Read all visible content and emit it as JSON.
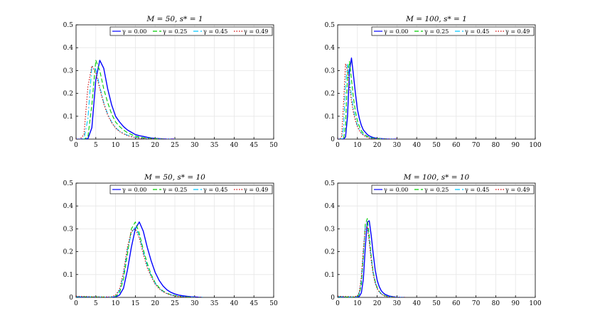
{
  "page": {},
  "colors": {
    "axis": "#000000",
    "grid": "#e6e6e6",
    "series": [
      "#0000ff",
      "#00cc00",
      "#00c8ff",
      "#cc0000"
    ]
  },
  "chart_data": [
    {
      "type": "line",
      "title": "M = 50, s* = 1",
      "xlim": [
        0,
        50
      ],
      "ylim": [
        0,
        0.5
      ],
      "xticks": [
        0,
        5,
        10,
        15,
        20,
        25,
        30,
        35,
        40,
        45,
        50
      ],
      "yticks": [
        0,
        0.1,
        0.2,
        0.3,
        0.4,
        0.5
      ],
      "grid": true,
      "legend": "top-right",
      "series": [
        {
          "name": "γ = 0.00",
          "style": "solid",
          "x": [
            0,
            1,
            2,
            3,
            4,
            5,
            6,
            7,
            8,
            9,
            10,
            11,
            12,
            13,
            14,
            15,
            16,
            17,
            18,
            19,
            20,
            21,
            22,
            23,
            24,
            25
          ],
          "y": [
            0,
            0,
            0,
            0.002,
            0.05,
            0.26,
            0.345,
            0.31,
            0.22,
            0.15,
            0.1,
            0.075,
            0.055,
            0.04,
            0.03,
            0.02,
            0.015,
            0.012,
            0.008,
            0.005,
            0.003,
            0.002,
            0.001,
            0,
            0,
            0
          ]
        },
        {
          "name": "γ = 0.25",
          "style": "dashed",
          "x": [
            0,
            1,
            2,
            3,
            4,
            5,
            6,
            7,
            8,
            9,
            10,
            11,
            12,
            13,
            14,
            15,
            16,
            17,
            18,
            19,
            20,
            21,
            22,
            23,
            24,
            25
          ],
          "y": [
            0,
            0,
            0,
            0.01,
            0.15,
            0.345,
            0.3,
            0.22,
            0.16,
            0.11,
            0.075,
            0.055,
            0.04,
            0.028,
            0.02,
            0.013,
            0.009,
            0.006,
            0.004,
            0.003,
            0.002,
            0.001,
            0,
            0,
            0,
            0
          ]
        },
        {
          "name": "γ = 0.45",
          "style": "dashdot",
          "x": [
            0,
            1,
            2,
            3,
            4,
            5,
            6,
            7,
            8,
            9,
            10,
            11,
            12,
            13,
            14,
            15,
            16,
            17,
            18,
            19,
            20,
            21,
            22,
            23,
            24,
            25
          ],
          "y": [
            0,
            0,
            0,
            0.09,
            0.32,
            0.305,
            0.23,
            0.16,
            0.11,
            0.075,
            0.05,
            0.035,
            0.025,
            0.017,
            0.012,
            0.008,
            0.005,
            0.003,
            0.002,
            0.001,
            0,
            0,
            0,
            0,
            0,
            0
          ]
        },
        {
          "name": "γ = 0.49",
          "style": "dotted",
          "x": [
            0,
            1,
            2,
            3,
            4,
            5,
            6,
            7,
            8,
            9,
            10,
            11,
            12,
            13,
            14,
            15,
            16,
            17,
            18,
            19,
            20,
            21,
            22,
            23,
            24,
            25
          ],
          "y": [
            0,
            0,
            0.02,
            0.23,
            0.32,
            0.29,
            0.22,
            0.155,
            0.105,
            0.072,
            0.048,
            0.033,
            0.023,
            0.015,
            0.01,
            0.007,
            0.004,
            0.003,
            0.002,
            0.001,
            0,
            0,
            0,
            0,
            0,
            0
          ]
        }
      ]
    },
    {
      "type": "line",
      "title": "M = 100, s* = 1",
      "xlim": [
        0,
        100
      ],
      "ylim": [
        0,
        0.5
      ],
      "xticks": [
        0,
        10,
        20,
        30,
        40,
        50,
        60,
        70,
        80,
        90,
        100
      ],
      "yticks": [
        0,
        0.1,
        0.2,
        0.3,
        0.4,
        0.5
      ],
      "grid": true,
      "legend": "top-right",
      "series": [
        {
          "name": "γ = 0.00",
          "style": "solid",
          "x": [
            0,
            1,
            2,
            3,
            4,
            5,
            6,
            7,
            8,
            9,
            10,
            11,
            12,
            13,
            14,
            15,
            16,
            17,
            18,
            19,
            20,
            22,
            24,
            26,
            28,
            30
          ],
          "y": [
            0,
            0,
            0,
            0,
            0.01,
            0.1,
            0.3,
            0.355,
            0.28,
            0.2,
            0.13,
            0.09,
            0.06,
            0.04,
            0.03,
            0.02,
            0.014,
            0.01,
            0.007,
            0.005,
            0.003,
            0.002,
            0.001,
            0,
            0,
            0
          ]
        },
        {
          "name": "γ = 0.25",
          "style": "dashed",
          "x": [
            0,
            1,
            2,
            3,
            4,
            5,
            6,
            7,
            8,
            9,
            10,
            11,
            12,
            13,
            14,
            15,
            16,
            17,
            18,
            19,
            20,
            22,
            24,
            26,
            28,
            30
          ],
          "y": [
            0,
            0,
            0,
            0.002,
            0.06,
            0.28,
            0.34,
            0.26,
            0.18,
            0.12,
            0.08,
            0.055,
            0.037,
            0.026,
            0.018,
            0.012,
            0.008,
            0.006,
            0.004,
            0.003,
            0.002,
            0.001,
            0,
            0,
            0,
            0
          ]
        },
        {
          "name": "γ = 0.45",
          "style": "dashdot",
          "x": [
            0,
            1,
            2,
            3,
            4,
            5,
            6,
            7,
            8,
            9,
            10,
            11,
            12,
            13,
            14,
            15,
            16,
            17,
            18,
            19,
            20,
            22,
            24,
            26,
            28,
            30
          ],
          "y": [
            0,
            0,
            0,
            0.05,
            0.24,
            0.33,
            0.26,
            0.19,
            0.13,
            0.09,
            0.06,
            0.04,
            0.028,
            0.019,
            0.013,
            0.009,
            0.006,
            0.004,
            0.003,
            0.002,
            0.001,
            0,
            0,
            0,
            0,
            0
          ]
        },
        {
          "name": "γ = 0.49",
          "style": "dotted",
          "x": [
            0,
            1,
            2,
            3,
            4,
            5,
            6,
            7,
            8,
            9,
            10,
            11,
            12,
            13,
            14,
            15,
            16,
            17,
            18,
            19,
            20,
            22,
            24,
            26,
            28,
            30
          ],
          "y": [
            0,
            0,
            0.01,
            0.16,
            0.33,
            0.3,
            0.23,
            0.165,
            0.115,
            0.08,
            0.055,
            0.037,
            0.025,
            0.017,
            0.012,
            0.008,
            0.005,
            0.003,
            0.002,
            0.001,
            0,
            0,
            0,
            0,
            0,
            0
          ]
        }
      ]
    },
    {
      "type": "line",
      "title": "M = 50, s* = 10",
      "xlim": [
        0,
        50
      ],
      "ylim": [
        0,
        0.5
      ],
      "xticks": [
        0,
        5,
        10,
        15,
        20,
        25,
        30,
        35,
        40,
        45,
        50
      ],
      "yticks": [
        0,
        0.1,
        0.2,
        0.3,
        0.4,
        0.5
      ],
      "grid": true,
      "legend": "top-right",
      "series": [
        {
          "name": "γ = 0.00",
          "style": "solid",
          "x": [
            0,
            2,
            4,
            6,
            8,
            9,
            10,
            11,
            12,
            13,
            14,
            15,
            16,
            17,
            18,
            19,
            20,
            21,
            22,
            23,
            24,
            25,
            26,
            27,
            28,
            29,
            30,
            31,
            32
          ],
          "y": [
            0,
            0,
            0,
            0,
            0,
            0,
            0.002,
            0.01,
            0.04,
            0.12,
            0.22,
            0.3,
            0.33,
            0.29,
            0.22,
            0.16,
            0.11,
            0.075,
            0.05,
            0.033,
            0.022,
            0.015,
            0.01,
            0.007,
            0.005,
            0.003,
            0.002,
            0.001,
            0
          ]
        },
        {
          "name": "γ = 0.25",
          "style": "dashed",
          "x": [
            0,
            2,
            4,
            6,
            8,
            9,
            10,
            11,
            12,
            13,
            14,
            15,
            16,
            17,
            18,
            19,
            20,
            21,
            22,
            23,
            24,
            25,
            26,
            27,
            28,
            29,
            30,
            31,
            32
          ],
          "y": [
            0.003,
            0.003,
            0.002,
            0.002,
            0.001,
            0.001,
            0.004,
            0.02,
            0.08,
            0.19,
            0.3,
            0.33,
            0.28,
            0.21,
            0.15,
            0.1,
            0.065,
            0.043,
            0.028,
            0.018,
            0.012,
            0.008,
            0.005,
            0.003,
            0.002,
            0.001,
            0,
            0,
            0
          ]
        },
        {
          "name": "γ = 0.45",
          "style": "dashdot",
          "x": [
            0,
            2,
            4,
            6,
            8,
            9,
            10,
            11,
            12,
            13,
            14,
            15,
            16,
            17,
            18,
            19,
            20,
            21,
            22,
            23,
            24,
            25,
            26,
            27,
            28,
            29,
            30,
            31,
            32
          ],
          "y": [
            0.004,
            0.003,
            0.003,
            0.002,
            0.001,
            0.002,
            0.008,
            0.03,
            0.1,
            0.21,
            0.28,
            0.31,
            0.27,
            0.2,
            0.14,
            0.095,
            0.062,
            0.04,
            0.026,
            0.017,
            0.011,
            0.007,
            0.004,
            0.003,
            0.002,
            0.001,
            0,
            0,
            0
          ]
        },
        {
          "name": "γ = 0.49",
          "style": "dotted",
          "x": [
            0,
            2,
            4,
            6,
            8,
            9,
            10,
            11,
            12,
            13,
            14,
            15,
            16,
            17,
            18,
            19,
            20,
            21,
            22,
            23,
            24,
            25,
            26,
            27,
            28,
            29,
            30,
            31,
            32
          ],
          "y": [
            0.005,
            0.004,
            0.003,
            0.002,
            0.002,
            0.003,
            0.01,
            0.035,
            0.11,
            0.22,
            0.29,
            0.3,
            0.26,
            0.19,
            0.13,
            0.09,
            0.058,
            0.038,
            0.025,
            0.016,
            0.01,
            0.006,
            0.004,
            0.002,
            0.001,
            0,
            0,
            0,
            0
          ]
        }
      ]
    },
    {
      "type": "line",
      "title": "M = 100, s* = 10",
      "xlim": [
        0,
        100
      ],
      "ylim": [
        0,
        0.5
      ],
      "xticks": [
        0,
        10,
        20,
        30,
        40,
        50,
        60,
        70,
        80,
        90,
        100
      ],
      "yticks": [
        0,
        0.1,
        0.2,
        0.3,
        0.4,
        0.5
      ],
      "grid": true,
      "legend": "top-right",
      "series": [
        {
          "name": "γ = 0.00",
          "style": "solid",
          "x": [
            0,
            4,
            8,
            10,
            11,
            12,
            13,
            14,
            15,
            16,
            17,
            18,
            19,
            20,
            21,
            22,
            23,
            24,
            26,
            28,
            30,
            32,
            34
          ],
          "y": [
            0,
            0,
            0,
            0,
            0.005,
            0.02,
            0.08,
            0.22,
            0.33,
            0.335,
            0.27,
            0.19,
            0.12,
            0.075,
            0.048,
            0.03,
            0.02,
            0.013,
            0.006,
            0.003,
            0.001,
            0,
            0
          ]
        },
        {
          "name": "γ = 0.25",
          "style": "dashed",
          "x": [
            0,
            4,
            8,
            10,
            11,
            12,
            13,
            14,
            15,
            16,
            17,
            18,
            19,
            20,
            21,
            22,
            23,
            24,
            26,
            28,
            30,
            32,
            34
          ],
          "y": [
            0.003,
            0.002,
            0.001,
            0.003,
            0.015,
            0.06,
            0.18,
            0.32,
            0.345,
            0.27,
            0.18,
            0.11,
            0.07,
            0.043,
            0.027,
            0.017,
            0.011,
            0.007,
            0.003,
            0.001,
            0,
            0,
            0
          ]
        },
        {
          "name": "γ = 0.45",
          "style": "dashdot",
          "x": [
            0,
            4,
            8,
            10,
            11,
            12,
            13,
            14,
            15,
            16,
            17,
            18,
            19,
            20,
            21,
            22,
            23,
            24,
            26,
            28,
            30,
            32,
            34
          ],
          "y": [
            0.004,
            0.003,
            0.002,
            0.005,
            0.02,
            0.08,
            0.2,
            0.31,
            0.315,
            0.25,
            0.17,
            0.105,
            0.065,
            0.04,
            0.025,
            0.016,
            0.01,
            0.006,
            0.002,
            0.001,
            0,
            0,
            0
          ]
        },
        {
          "name": "γ = 0.49",
          "style": "dotted",
          "x": [
            0,
            4,
            8,
            10,
            11,
            12,
            13,
            14,
            15,
            16,
            17,
            18,
            19,
            20,
            21,
            22,
            23,
            24,
            26,
            28,
            30,
            32,
            34
          ],
          "y": [
            0.005,
            0.004,
            0.003,
            0.006,
            0.025,
            0.09,
            0.21,
            0.3,
            0.31,
            0.24,
            0.16,
            0.1,
            0.062,
            0.038,
            0.024,
            0.015,
            0.009,
            0.005,
            0.002,
            0.001,
            0,
            0,
            0
          ]
        }
      ]
    }
  ]
}
